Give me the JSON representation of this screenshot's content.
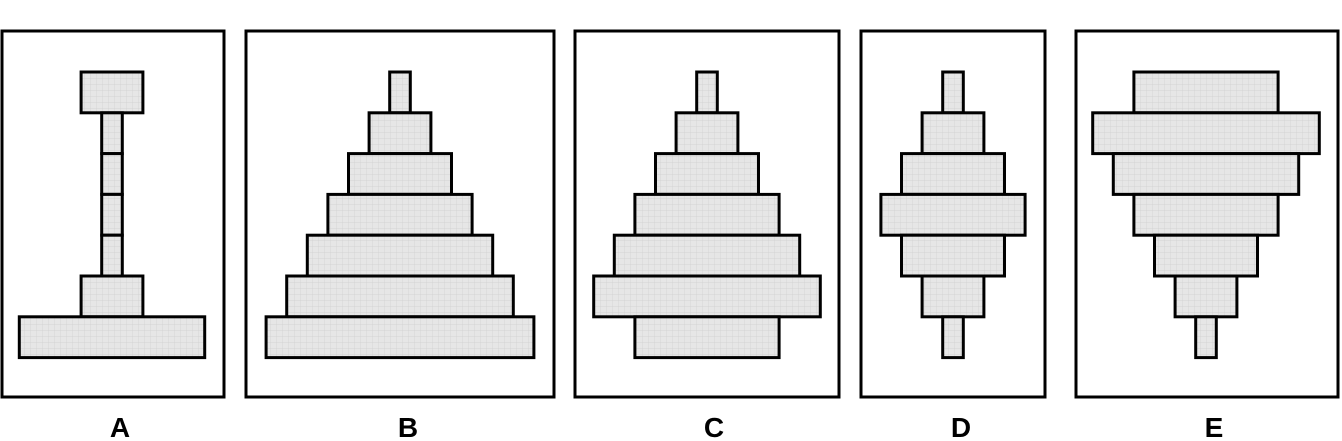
{
  "panels": [
    {
      "label": "A",
      "bar_widths": [
        3,
        1,
        1,
        1,
        1,
        3,
        9
      ]
    },
    {
      "label": "B",
      "bar_widths": [
        1,
        3,
        5,
        7,
        9,
        11,
        13
      ]
    },
    {
      "label": "C",
      "bar_widths": [
        1,
        3,
        5,
        7,
        9,
        11,
        7
      ]
    },
    {
      "label": "D",
      "bar_widths": [
        1,
        3,
        5,
        7,
        5,
        3,
        1
      ]
    },
    {
      "label": "E",
      "bar_widths": [
        7,
        11,
        9,
        7,
        5,
        3,
        1
      ]
    }
  ],
  "colors": {
    "bar_fill": "#e6e6e6",
    "grid_line": "#cfcfcf",
    "stroke": "#000000",
    "background": "#ffffff"
  }
}
